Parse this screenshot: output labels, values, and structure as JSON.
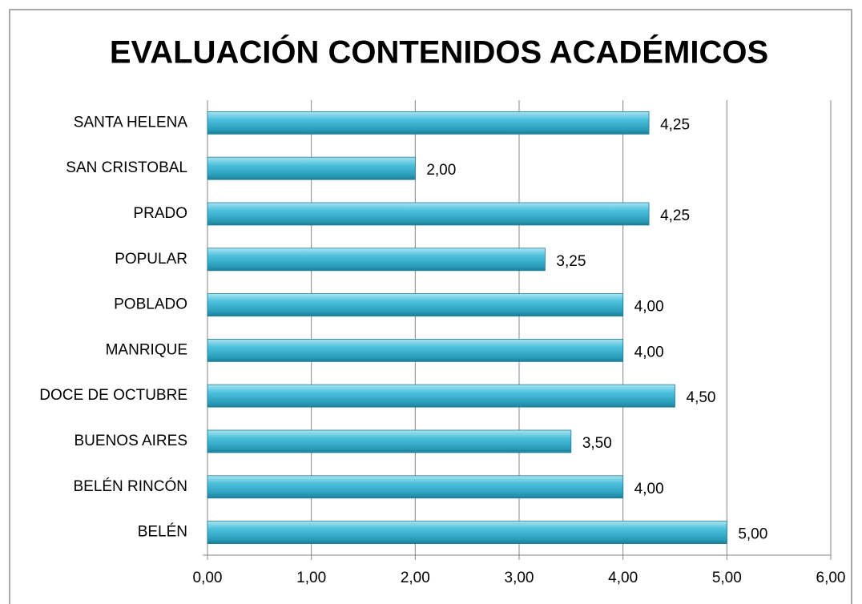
{
  "chart_data": {
    "type": "bar",
    "orientation": "horizontal",
    "title": "EVALUACIÓN CONTENIDOS ACADÉMICOS",
    "categories": [
      "SANTA HELENA",
      "SAN CRISTOBAL",
      "PRADO",
      "POPULAR",
      "POBLADO",
      "MANRIQUE",
      "DOCE DE OCTUBRE",
      "BUENOS AIRES",
      "BELÉN RINCÓN",
      "BELÉN"
    ],
    "values": [
      4.25,
      2.0,
      4.25,
      3.25,
      4.0,
      4.0,
      4.5,
      3.5,
      4.0,
      5.0
    ],
    "value_labels": [
      "4,25",
      "2,00",
      "4,25",
      "3,25",
      "4,00",
      "4,00",
      "4,50",
      "3,50",
      "4,00",
      "5,00"
    ],
    "color": "#3fb3d0",
    "xlim": [
      0,
      6
    ],
    "xticks": [
      {
        "value": 0,
        "label": "0,00"
      },
      {
        "value": 1,
        "label": "1,00"
      },
      {
        "value": 2,
        "label": "2,00"
      },
      {
        "value": 3,
        "label": "3,00"
      },
      {
        "value": 4,
        "label": "4,00"
      },
      {
        "value": 5,
        "label": "5,00"
      },
      {
        "value": 6,
        "label": "6,00"
      }
    ],
    "grid": true
  }
}
